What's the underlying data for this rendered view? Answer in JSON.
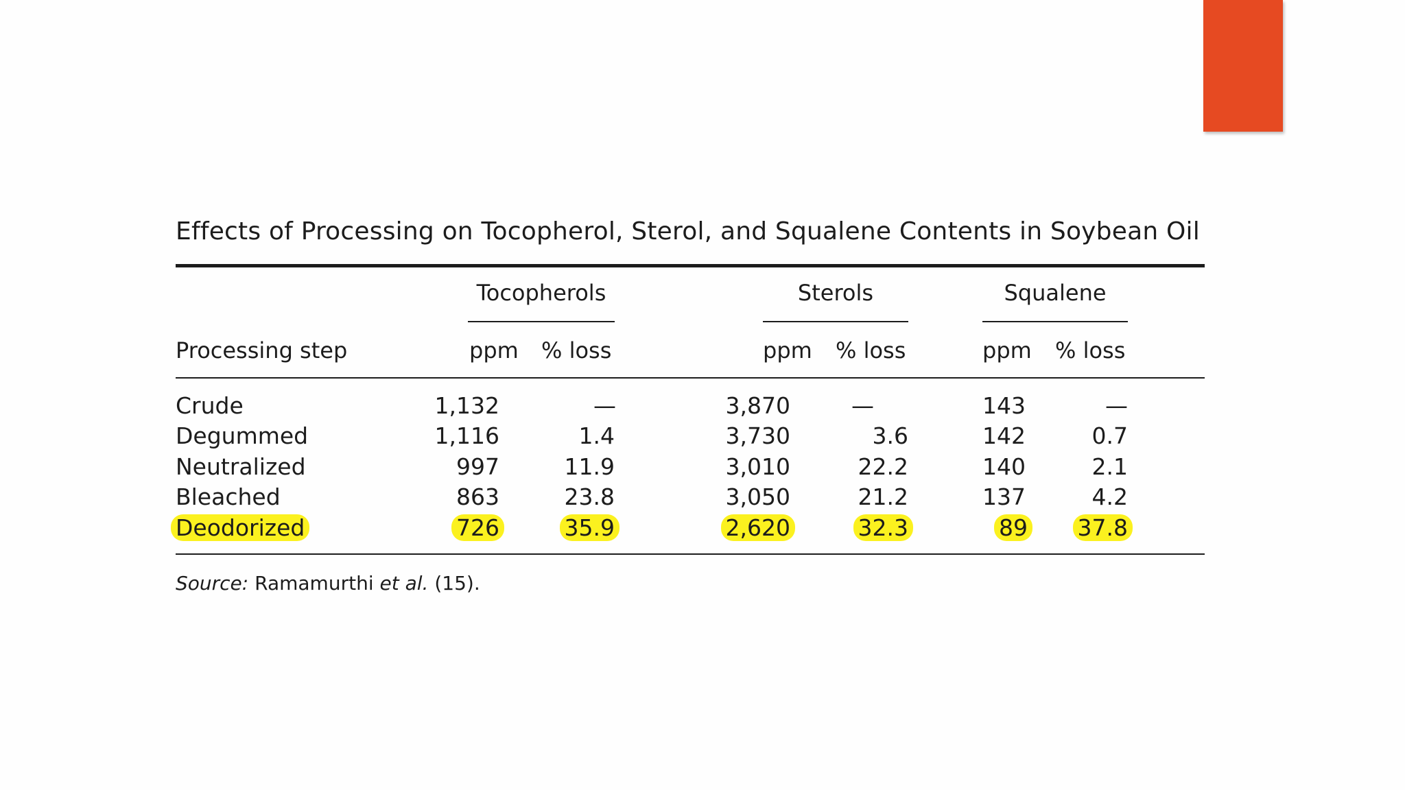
{
  "slide": {
    "accent_color": "#e64a22",
    "highlight_color": "#fbf11f"
  },
  "table": {
    "title": "Effects of Processing on Tocopherol, Sterol, and Squalene Contents in Soybean Oil",
    "row_header": "Processing step",
    "groups": [
      {
        "label": "Tocopherols",
        "ppm_label": "ppm",
        "loss_label": "% loss"
      },
      {
        "label": "Sterols",
        "ppm_label": "ppm",
        "loss_label": "% loss"
      },
      {
        "label": "Squalene",
        "ppm_label": "ppm",
        "loss_label": "% loss"
      }
    ],
    "rows": [
      {
        "step": "Crude",
        "highlighted": false,
        "values": [
          "1,132",
          "—",
          "3,870",
          "—",
          "143",
          "—"
        ]
      },
      {
        "step": "Degummed",
        "highlighted": false,
        "values": [
          "1,116",
          "1.4",
          "3,730",
          "3.6",
          "142",
          "0.7"
        ]
      },
      {
        "step": "Neutralized",
        "highlighted": false,
        "values": [
          "997",
          "11.9",
          "3,010",
          "22.2",
          "140",
          "2.1"
        ]
      },
      {
        "step": "Bleached",
        "highlighted": false,
        "values": [
          "863",
          "23.8",
          "3,050",
          "21.2",
          "137",
          "4.2"
        ]
      },
      {
        "step": "Deodorized",
        "highlighted": true,
        "values": [
          "726",
          "35.9",
          "2,620",
          "32.3",
          "89",
          "37.8"
        ]
      }
    ],
    "source": {
      "label": "Source:",
      "author": "Ramamurthi",
      "etal": "et al.",
      "ref": "(15)."
    }
  }
}
